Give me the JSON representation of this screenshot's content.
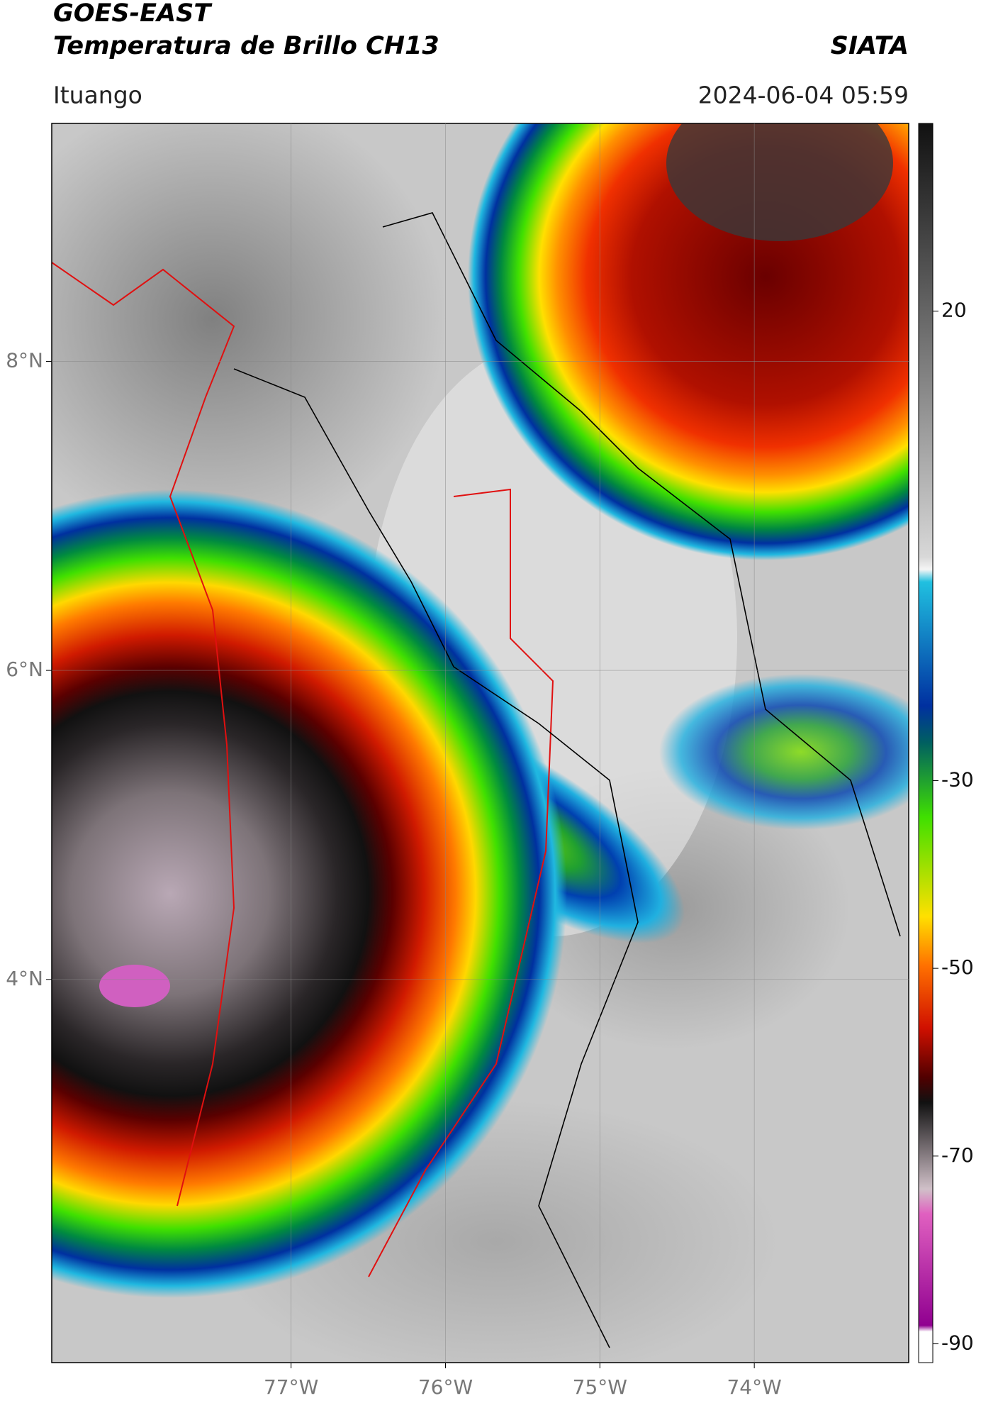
{
  "header": {
    "title": "GOES-EAST",
    "subtitle": "Temperatura de Brillo CH13",
    "source": "SIATA",
    "location": "Ituango",
    "datetime": "2024-06-04 05:59"
  },
  "map": {
    "xlim": [
      -78.55,
      -73.0
    ],
    "ylim": [
      1.52,
      9.54
    ],
    "xticks": [
      {
        "value": -77,
        "label": "77°W"
      },
      {
        "value": -76,
        "label": "76°W"
      },
      {
        "value": -75,
        "label": "75°W"
      },
      {
        "value": -74,
        "label": "74°W"
      }
    ],
    "yticks": [
      {
        "value": 8,
        "label": "8°N"
      },
      {
        "value": 6,
        "label": "6°N"
      },
      {
        "value": 4,
        "label": "4°N"
      }
    ],
    "grid": true
  },
  "colorbar": {
    "lim": [
      -92,
      40
    ],
    "ticks": [
      20,
      -30,
      -50,
      -70,
      -90
    ]
  }
}
